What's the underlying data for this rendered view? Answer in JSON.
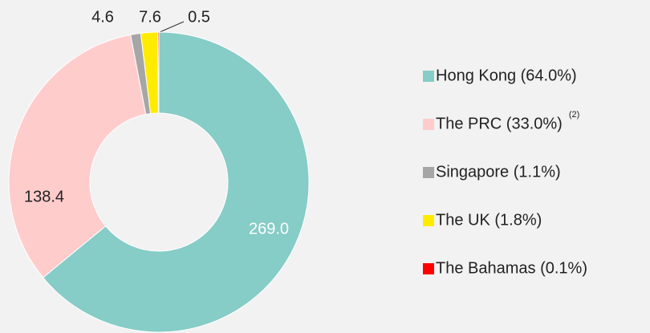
{
  "chart_data": {
    "type": "donut",
    "categories": [
      "Hong Kong (64.0%)",
      "The PRC (33.0%)",
      "Singapore (1.1%)",
      "The UK (1.8%)",
      "The Bahamas (0.1%)"
    ],
    "legend_superscripts": [
      null,
      "(2)",
      null,
      null,
      null
    ],
    "values": [
      269.0,
      138.4,
      4.6,
      7.6,
      0.5
    ],
    "value_labels": [
      "269.0",
      "138.4",
      "4.6",
      "7.6",
      "0.5"
    ],
    "colors": [
      "#86ccc7",
      "#ffcccc",
      "#a6a6a6",
      "#ffeb00",
      "#ff0000"
    ],
    "legend": "right"
  }
}
